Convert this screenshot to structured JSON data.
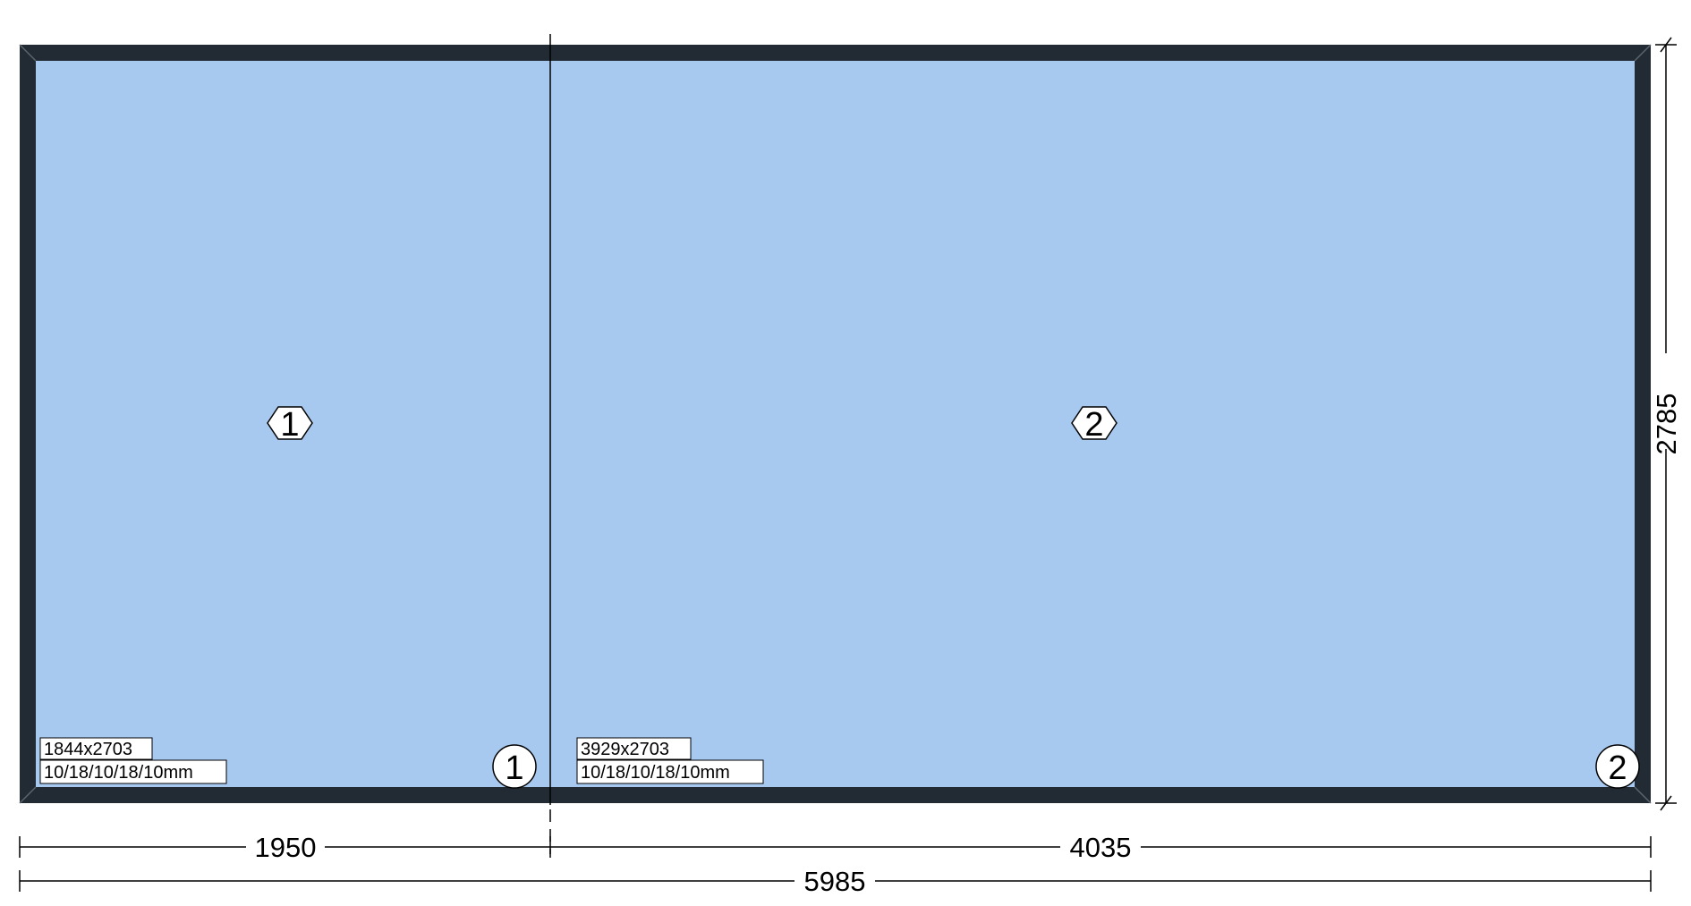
{
  "colors": {
    "frame": "#222a33",
    "glass": "#a7c9ef",
    "line": "#000000",
    "label_bg": "#ffffff"
  },
  "panes": [
    {
      "number": "1",
      "size": "1844x2703",
      "glass": "10/18/10/18/10mm"
    },
    {
      "number": "2",
      "size": "3929x2703",
      "glass": "10/18/10/18/10mm"
    }
  ],
  "bottom_markers": [
    "1",
    "2"
  ],
  "dimensions": {
    "segments": [
      "1950",
      "4035"
    ],
    "total_width": "5985",
    "height": "2785"
  }
}
